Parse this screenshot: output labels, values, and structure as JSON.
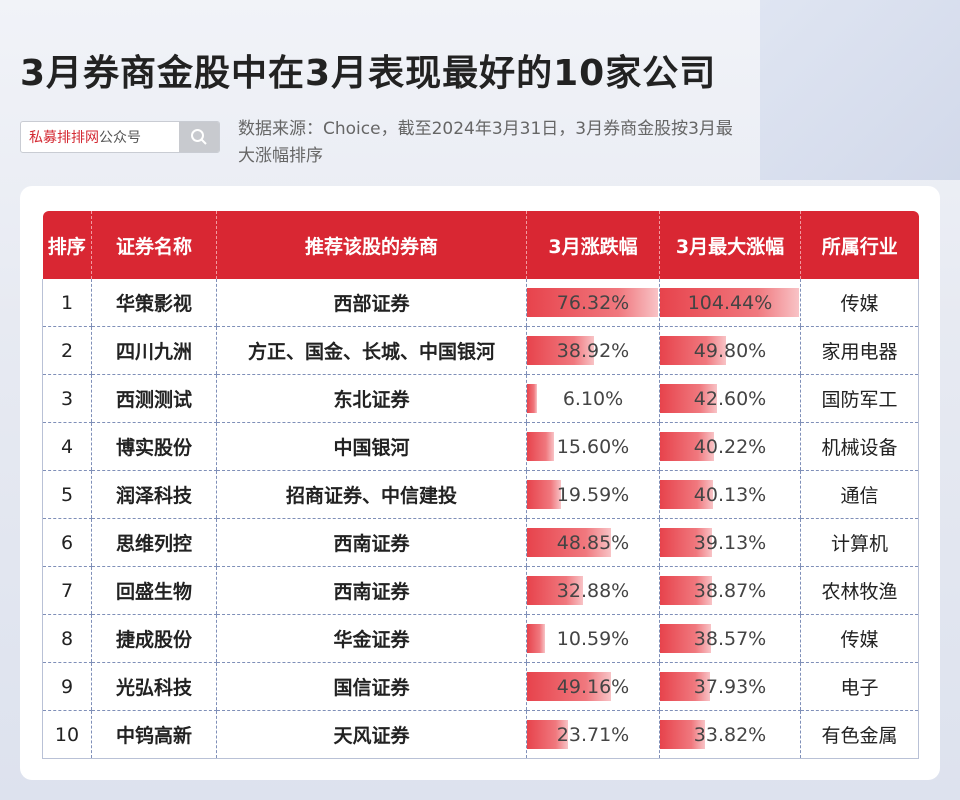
{
  "title": "3月券商金股中在3月表现最好的10家公司",
  "search": {
    "brand": "私募排排网",
    "suffix": "公众号"
  },
  "source_text": "数据来源：Choice，截至2024年3月31日，3月券商金股按3月最大涨幅排序",
  "headers": [
    "排序",
    "证券名称",
    "推荐该股的券商",
    "3月涨跌幅",
    "3月最大涨幅",
    "所属行业"
  ],
  "colors": {
    "header": "#d92733",
    "bar": "#e7434c"
  },
  "icons": {
    "search": "search-icon"
  },
  "chart_data": {
    "type": "table",
    "bar_scale": {
      "change_max": 76.32,
      "max_rise_max": 104.44
    },
    "rows": [
      {
        "rank": "1",
        "name": "华策影视",
        "brokers": "西部证券",
        "change": 76.32,
        "change_label": "76.32%",
        "max_rise": 104.44,
        "max_rise_label": "104.44%",
        "industry": "传媒"
      },
      {
        "rank": "2",
        "name": "四川九洲",
        "brokers": "方正、国金、长城、中国银河",
        "change": 38.92,
        "change_label": "38.92%",
        "max_rise": 49.8,
        "max_rise_label": "49.80%",
        "industry": "家用电器"
      },
      {
        "rank": "3",
        "name": "西测测试",
        "brokers": "东北证券",
        "change": 6.1,
        "change_label": "6.10%",
        "max_rise": 42.6,
        "max_rise_label": "42.60%",
        "industry": "国防军工"
      },
      {
        "rank": "4",
        "name": "博实股份",
        "brokers": "中国银河",
        "change": 15.6,
        "change_label": "15.60%",
        "max_rise": 40.22,
        "max_rise_label": "40.22%",
        "industry": "机械设备"
      },
      {
        "rank": "5",
        "name": "润泽科技",
        "brokers": "招商证券、中信建投",
        "change": 19.59,
        "change_label": "19.59%",
        "max_rise": 40.13,
        "max_rise_label": "40.13%",
        "industry": "通信"
      },
      {
        "rank": "6",
        "name": "思维列控",
        "brokers": "西南证券",
        "change": 48.85,
        "change_label": "48.85%",
        "max_rise": 39.13,
        "max_rise_label": "39.13%",
        "industry": "计算机"
      },
      {
        "rank": "7",
        "name": "回盛生物",
        "brokers": "西南证券",
        "change": 32.88,
        "change_label": "32.88%",
        "max_rise": 38.87,
        "max_rise_label": "38.87%",
        "industry": "农林牧渔"
      },
      {
        "rank": "8",
        "name": "捷成股份",
        "brokers": "华金证券",
        "change": 10.59,
        "change_label": "10.59%",
        "max_rise": 38.57,
        "max_rise_label": "38.57%",
        "industry": "传媒"
      },
      {
        "rank": "9",
        "name": "光弘科技",
        "brokers": "国信证券",
        "change": 49.16,
        "change_label": "49.16%",
        "max_rise": 37.93,
        "max_rise_label": "37.93%",
        "industry": "电子"
      },
      {
        "rank": "10",
        "name": "中钨高新",
        "brokers": "天风证券",
        "change": 23.71,
        "change_label": "23.71%",
        "max_rise": 33.82,
        "max_rise_label": "33.82%",
        "industry": "有色金属"
      }
    ]
  }
}
